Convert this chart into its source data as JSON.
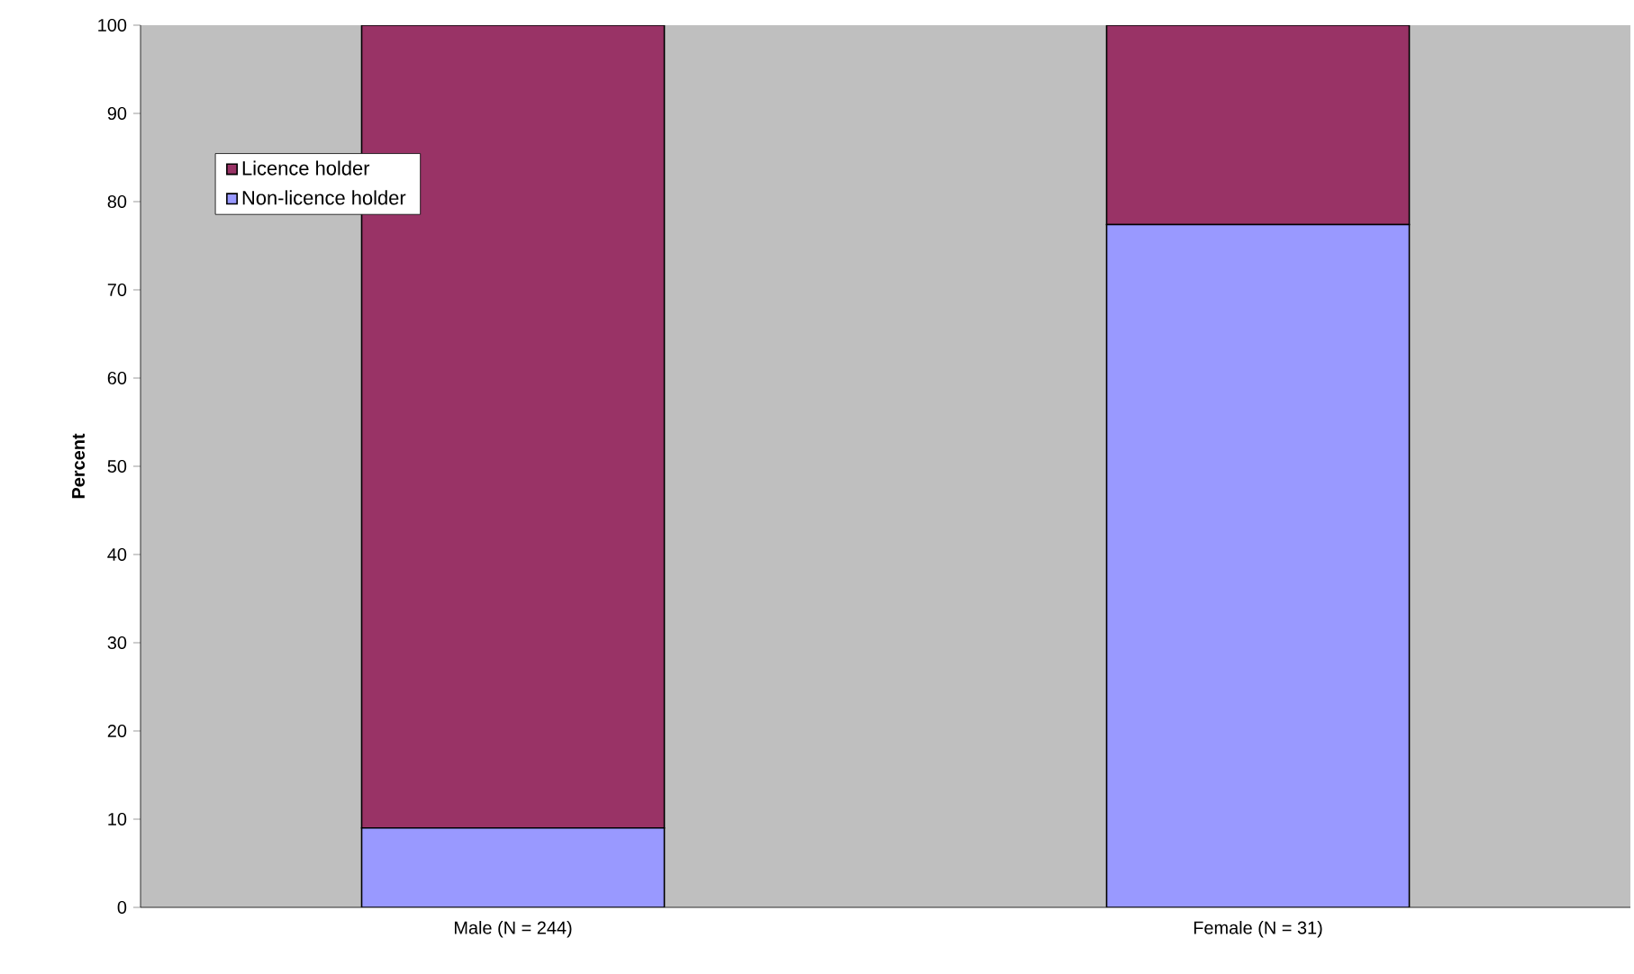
{
  "chart_data": {
    "type": "bar",
    "stacked": true,
    "ylabel": "Percent",
    "categories": [
      "Male (N = 244)",
      "Female (N = 31)"
    ],
    "series": [
      {
        "name": "Non-licence holder",
        "color": "#9999ff",
        "values": [
          9,
          77.4
        ]
      },
      {
        "name": "Licence holder",
        "color": "#993366",
        "values": [
          91,
          22.6
        ]
      }
    ],
    "ylim": [
      0,
      100
    ],
    "yticks": [
      0,
      10,
      20,
      30,
      40,
      50,
      60,
      70,
      80,
      90,
      100
    ],
    "grid": false,
    "legend": "top left"
  }
}
